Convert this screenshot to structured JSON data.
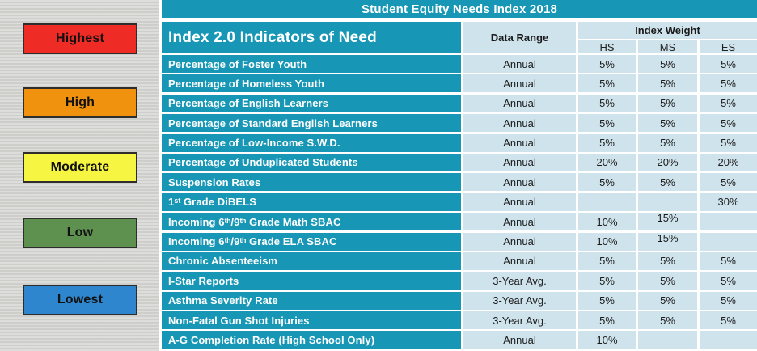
{
  "legend": {
    "items": [
      {
        "label": "Highest",
        "color": "#ee2b25"
      },
      {
        "label": "High",
        "color": "#f0920e"
      },
      {
        "label": "Moderate",
        "color": "#f6f542"
      },
      {
        "label": "Low",
        "color": "#5e9150"
      },
      {
        "label": "Lowest",
        "color": "#2e87ce"
      }
    ]
  },
  "table": {
    "title": "Student Equity Needs Index 2018",
    "header": {
      "indicator": "Index 2.0 Indicators of Need",
      "data_range": "Data Range",
      "index_weight": "Index Weight",
      "hs": "HS",
      "ms": "MS",
      "es": "ES"
    },
    "rows": [
      {
        "label": "Percentage of Foster Youth",
        "range": "Annual",
        "hs": "5%",
        "ms": "5%",
        "es": "5%"
      },
      {
        "label": "Percentage of Homeless Youth",
        "range": "Annual",
        "hs": "5%",
        "ms": "5%",
        "es": "5%"
      },
      {
        "label": "Percentage of English Learners",
        "range": "Annual",
        "hs": "5%",
        "ms": "5%",
        "es": "5%"
      },
      {
        "label": "Percentage of Standard English Learners",
        "range": "Annual",
        "hs": "5%",
        "ms": "5%",
        "es": "5%"
      },
      {
        "label": "Percentage of Low-Income S.W.D.",
        "range": "Annual",
        "hs": "5%",
        "ms": "5%",
        "es": "5%"
      },
      {
        "label": "Percentage of Unduplicated Students",
        "range": "Annual",
        "hs": "20%",
        "ms": "20%",
        "es": "20%"
      },
      {
        "label": "Suspension Rates",
        "range": "Annual",
        "hs": "5%",
        "ms": "5%",
        "es": "5%"
      },
      {
        "label": "1ˢᵗ Grade DiBELS",
        "range": "Annual",
        "hs": "",
        "ms": "",
        "es": "30%"
      },
      {
        "label": "Incoming 6ᵗʰ/9ᵗʰ Grade Math SBAC",
        "range": "Annual",
        "hs": "10%",
        "ms": "15%",
        "es": ""
      },
      {
        "label": "Incoming 6ᵗʰ/9ᵗʰ Grade ELA SBAC",
        "range": "Annual",
        "hs": "10%",
        "ms": "15%",
        "es": ""
      },
      {
        "label": "Chronic Absenteeism",
        "range": "Annual",
        "hs": "5%",
        "ms": "5%",
        "es": "5%"
      },
      {
        "label": "I-Star Reports",
        "range": "3-Year Avg.",
        "hs": "5%",
        "ms": "5%",
        "es": "5%"
      },
      {
        "label": "Asthma Severity Rate",
        "range": "3-Year Avg.",
        "hs": "5%",
        "ms": "5%",
        "es": "5%"
      },
      {
        "label": "Non-Fatal Gun Shot Injuries",
        "range": "3-Year Avg.",
        "hs": "5%",
        "ms": "5%",
        "es": "5%"
      },
      {
        "label": "A-G Completion Rate (High School Only)",
        "range": "Annual",
        "hs": "10%",
        "ms": "",
        "es": ""
      }
    ]
  },
  "colors": {
    "teal_header": "#1797b5",
    "light_blue_cell": "#cfe3ec",
    "legend_background": "#d4d4d1",
    "row_label_text": "#ffffff",
    "value_text": "#1b1b1b"
  }
}
